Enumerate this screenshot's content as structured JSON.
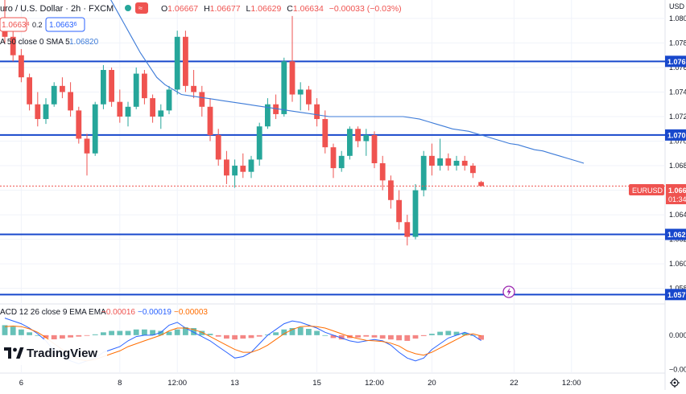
{
  "header": {
    "title": "uro / U.S. Dollar · 2h · FXCM",
    "ohlc": {
      "o_label": "O",
      "o": "1.06667",
      "h_label": "H",
      "h": "1.06677",
      "l_label": "L",
      "l": "1.06629",
      "c_label": "C",
      "c": "1.06634",
      "change": "−0.00033 (−0.03%)"
    },
    "sell_price": "1.0663",
    "sell_super": "4",
    "spread": "0.2",
    "buy_price": "1.0663",
    "buy_super": "6",
    "indicator_label": "A 50 close 0 SMA 5",
    "indicator_value": "1.06820"
  },
  "axis": {
    "currency": "USD",
    "date_labels": [
      {
        "i": 2,
        "text": "6"
      },
      {
        "i": 14,
        "text": "8"
      },
      {
        "i": 21,
        "text": "12:00"
      },
      {
        "i": 28,
        "text": "13"
      },
      {
        "i": 38,
        "text": "15"
      },
      {
        "i": 45,
        "text": "12:00"
      },
      {
        "i": 52,
        "text": "20"
      },
      {
        "i": 62,
        "text": "22"
      },
      {
        "i": 69,
        "text": "12:00"
      }
    ]
  },
  "symbol_badge": {
    "symbol": "EURUSD",
    "price": "1.066",
    "countdown": "01:34"
  },
  "macd": {
    "label": "ACD 12 26 close 9 EMA EMA",
    "hist_value": "−0.00016",
    "macd_value": "−0.00019",
    "signal_value": "−0.00003",
    "ticks": [
      "0.000",
      "−0.00"
    ]
  },
  "brand": {
    "name": "TradingView"
  },
  "colors": {
    "up": "#26a69a",
    "down": "#ef5350",
    "level_line": "#1848cc",
    "sma": "#3d7bd8",
    "macd_line": "#2962ff",
    "signal_line": "#ff6d00",
    "badge_red": "#ef5350",
    "badge_blue": "#1848cc"
  },
  "chart_data": {
    "type": "candlestick",
    "symbol": "EURUSD",
    "timeframe": "2h",
    "y_ticks": [
      1.08,
      1.078,
      1.076,
      1.074,
      1.072,
      1.07,
      1.068,
      1.066,
      1.064,
      1.062,
      1.06,
      1.058
    ],
    "y_ticks_shown": [
      "1.080",
      "1.078",
      "1.076",
      "1.074",
      "1.072",
      "1.070",
      "1.068",
      "1.066",
      "1.064",
      "1.062",
      "1.060",
      "1.058"
    ],
    "ylim": [
      1.0568,
      1.0815
    ],
    "candles": [
      [
        1.08,
        1.0815,
        1.078,
        1.0785
      ],
      [
        1.0785,
        1.0795,
        1.0765,
        1.077
      ],
      [
        1.077,
        1.0775,
        1.0748,
        1.0752
      ],
      [
        1.0752,
        1.0755,
        1.0725,
        1.073
      ],
      [
        1.073,
        1.074,
        1.0712,
        1.0718
      ],
      [
        1.0718,
        1.0735,
        1.0714,
        1.073
      ],
      [
        1.073,
        1.0748,
        1.0728,
        1.0745
      ],
      [
        1.0745,
        1.0752,
        1.0735,
        1.074
      ],
      [
        1.074,
        1.0748,
        1.072,
        1.0725
      ],
      [
        1.0725,
        1.0728,
        1.0698,
        1.0702
      ],
      [
        1.0702,
        1.0706,
        1.0672,
        1.069
      ],
      [
        1.069,
        1.0732,
        1.0688,
        1.073
      ],
      [
        1.073,
        1.0762,
        1.0726,
        1.0758
      ],
      [
        1.0758,
        1.076,
        1.0728,
        1.0732
      ],
      [
        1.0732,
        1.0742,
        1.0715,
        1.072
      ],
      [
        1.072,
        1.0732,
        1.0712,
        1.0728
      ],
      [
        1.0728,
        1.076,
        1.0726,
        1.0755
      ],
      [
        1.0755,
        1.0758,
        1.073,
        1.0735
      ],
      [
        1.0735,
        1.0738,
        1.0715,
        1.072
      ],
      [
        1.072,
        1.073,
        1.071,
        1.0725
      ],
      [
        1.0725,
        1.0745,
        1.0722,
        1.0742
      ],
      [
        1.0742,
        1.079,
        1.0738,
        1.0785
      ],
      [
        1.0785,
        1.079,
        1.074,
        1.0745
      ],
      [
        1.0745,
        1.0758,
        1.0735,
        1.074
      ],
      [
        1.074,
        1.0745,
        1.072,
        1.0728
      ],
      [
        1.0728,
        1.0735,
        1.07,
        1.0705
      ],
      [
        1.0705,
        1.071,
        1.068,
        1.0685
      ],
      [
        1.0685,
        1.0692,
        1.0665,
        1.0672
      ],
      [
        1.0672,
        1.0685,
        1.0662,
        1.068
      ],
      [
        1.068,
        1.069,
        1.067,
        1.0675
      ],
      [
        1.0675,
        1.0688,
        1.067,
        1.0685
      ],
      [
        1.0685,
        1.0715,
        1.068,
        1.0712
      ],
      [
        1.0712,
        1.0735,
        1.071,
        1.073
      ],
      [
        1.073,
        1.0738,
        1.0718,
        1.0722
      ],
      [
        1.0722,
        1.0768,
        1.072,
        1.0765
      ],
      [
        1.0765,
        1.0802,
        1.0732,
        1.0738
      ],
      [
        1.0738,
        1.0748,
        1.0725,
        1.0742
      ],
      [
        1.0742,
        1.0745,
        1.0725,
        1.073
      ],
      [
        1.073,
        1.0735,
        1.0712,
        1.0718
      ],
      [
        1.0718,
        1.0725,
        1.069,
        1.0695
      ],
      [
        1.0695,
        1.0698,
        1.067,
        1.0678
      ],
      [
        1.0678,
        1.0692,
        1.0675,
        1.0688
      ],
      [
        1.0688,
        1.0712,
        1.0685,
        1.071
      ],
      [
        1.071,
        1.0712,
        1.0695,
        1.07
      ],
      [
        1.07,
        1.071,
        1.0688,
        1.0705
      ],
      [
        1.0705,
        1.0708,
        1.0678,
        1.0682
      ],
      [
        1.0682,
        1.0688,
        1.066,
        1.0668
      ],
      [
        1.0668,
        1.0672,
        1.0645,
        1.0652
      ],
      [
        1.0652,
        1.066,
        1.0628,
        1.0634
      ],
      [
        1.0634,
        1.064,
        1.0615,
        1.0622
      ],
      [
        1.0622,
        1.0665,
        1.062,
        1.066
      ],
      [
        1.066,
        1.0692,
        1.0655,
        1.0688
      ],
      [
        1.0688,
        1.0698,
        1.0672,
        1.068
      ],
      [
        1.068,
        1.0702,
        1.0676,
        1.0686
      ],
      [
        1.0686,
        1.069,
        1.0676,
        1.068
      ],
      [
        1.068,
        1.0688,
        1.0676,
        1.0684
      ],
      [
        1.0684,
        1.0688,
        1.0676,
        1.068
      ],
      [
        1.068,
        1.0682,
        1.067,
        1.0674
      ],
      [
        1.06667,
        1.06677,
        1.06629,
        1.06634
      ]
    ],
    "sma50": [
      1.082,
      1.0808,
      1.0796,
      1.0784,
      1.0772,
      1.0762,
      1.0752,
      1.0746,
      1.0742,
      1.0738,
      1.0737,
      1.0736,
      1.0735,
      1.0734,
      1.0733,
      1.0732,
      1.0731,
      1.073,
      1.0729,
      1.0728,
      1.0727,
      1.0726,
      1.0725,
      1.0724,
      1.0723,
      1.0722,
      1.0721,
      1.072,
      1.072,
      1.072,
      1.072,
      1.072,
      1.072,
      1.072,
      1.072,
      1.072,
      1.072,
      1.0719,
      1.0718,
      1.0716,
      1.0714,
      1.0712,
      1.071,
      1.0709,
      1.0708,
      1.0706,
      1.0704,
      1.0702,
      1.07,
      1.0698,
      1.0697,
      1.0695,
      1.0693,
      1.0692,
      1.069,
      1.0688,
      1.0686,
      1.0684,
      1.0682
    ],
    "levels": [
      {
        "value": 1.0765,
        "label": "1.076"
      },
      {
        "value": 1.0705,
        "label": "1.070"
      },
      {
        "value": 1.0624,
        "label": "1.062"
      },
      {
        "value": 1.0575,
        "label": "1.057"
      }
    ],
    "macd": {
      "hist": [
        0.00035,
        0.0003,
        0.0002,
        0.0001,
        0.0,
        -0.0001,
        -0.00015,
        -0.00012,
        -8e-05,
        -5e-05,
        -2e-05,
        3e-05,
        0.0001,
        0.00015,
        0.00015,
        0.00015,
        0.0002,
        0.0002,
        0.00018,
        0.00015,
        0.00012,
        0.0002,
        0.00028,
        0.00025,
        0.00015,
        5e-05,
        -5e-05,
        -0.00012,
        -0.00015,
        -0.00012,
        -0.0001,
        -5e-05,
        2e-05,
        0.0001,
        0.0002,
        0.00025,
        0.00028,
        0.00022,
        0.00015,
        0.0,
        -0.0001,
        -0.00015,
        -0.0001,
        -8e-05,
        -5e-05,
        -8e-05,
        -0.00012,
        -0.00015,
        -0.00018,
        -0.0002,
        -0.00012,
        -3e-05,
        5e-05,
        0.00012,
        0.00015,
        0.00012,
        8e-05,
        0.0,
        -0.00016
      ],
      "macd": [
        0.0006,
        0.0005,
        0.0004,
        0.00025,
        5e-05,
        -0.0002,
        -0.00055,
        -0.0007,
        -0.0009,
        -0.001,
        -0.0009,
        -0.0008,
        -0.0006,
        -0.0005,
        -0.0004,
        -0.0002,
        -5e-05,
        0.0,
        0.0,
        0.0001,
        0.00035,
        0.00045,
        0.00025,
        0.0001,
        -5e-05,
        -0.0002,
        -0.0004,
        -0.0006,
        -0.0008,
        -0.00075,
        -0.0006,
        -0.0003,
        0.0,
        0.0002,
        0.0004,
        0.0005,
        0.00045,
        0.00035,
        0.00025,
        0.0001,
        0.0,
        -0.0001,
        -0.0002,
        -0.00025,
        -0.0002,
        -0.00015,
        -0.0002,
        -0.00035,
        -0.0006,
        -0.0008,
        -0.0009,
        -0.0008,
        -0.0005,
        -0.0003,
        -0.0001,
        0.0,
        0.0001,
        0.0,
        -0.00019
      ],
      "signal": [
        0.0003,
        0.00032,
        0.0003,
        0.00022,
        0.0001,
        -8e-05,
        -0.0003,
        -0.0005,
        -0.0007,
        -0.00085,
        -0.0009,
        -0.00085,
        -0.00075,
        -0.00065,
        -0.00055,
        -0.0004,
        -0.0003,
        -0.0002,
        -0.0001,
        0.0,
        0.00015,
        0.00025,
        0.00025,
        0.0002,
        0.0001,
        -5e-05,
        -0.0002,
        -0.00035,
        -0.0005,
        -0.0006,
        -0.0006,
        -0.0005,
        -0.00035,
        -0.00015,
        5e-05,
        0.0002,
        0.0003,
        0.00032,
        0.0003,
        0.00025,
        0.00015,
        5e-05,
        -5e-05,
        -0.00012,
        -0.00018,
        -0.0002,
        -0.00022,
        -0.00028,
        -0.00038,
        -0.00055,
        -0.00065,
        -0.0007,
        -0.0006,
        -0.00045,
        -0.0003,
        -0.00015,
        0.0,
        5e-05,
        -3e-05
      ],
      "ylim": [
        -0.0013,
        0.0007
      ]
    }
  }
}
